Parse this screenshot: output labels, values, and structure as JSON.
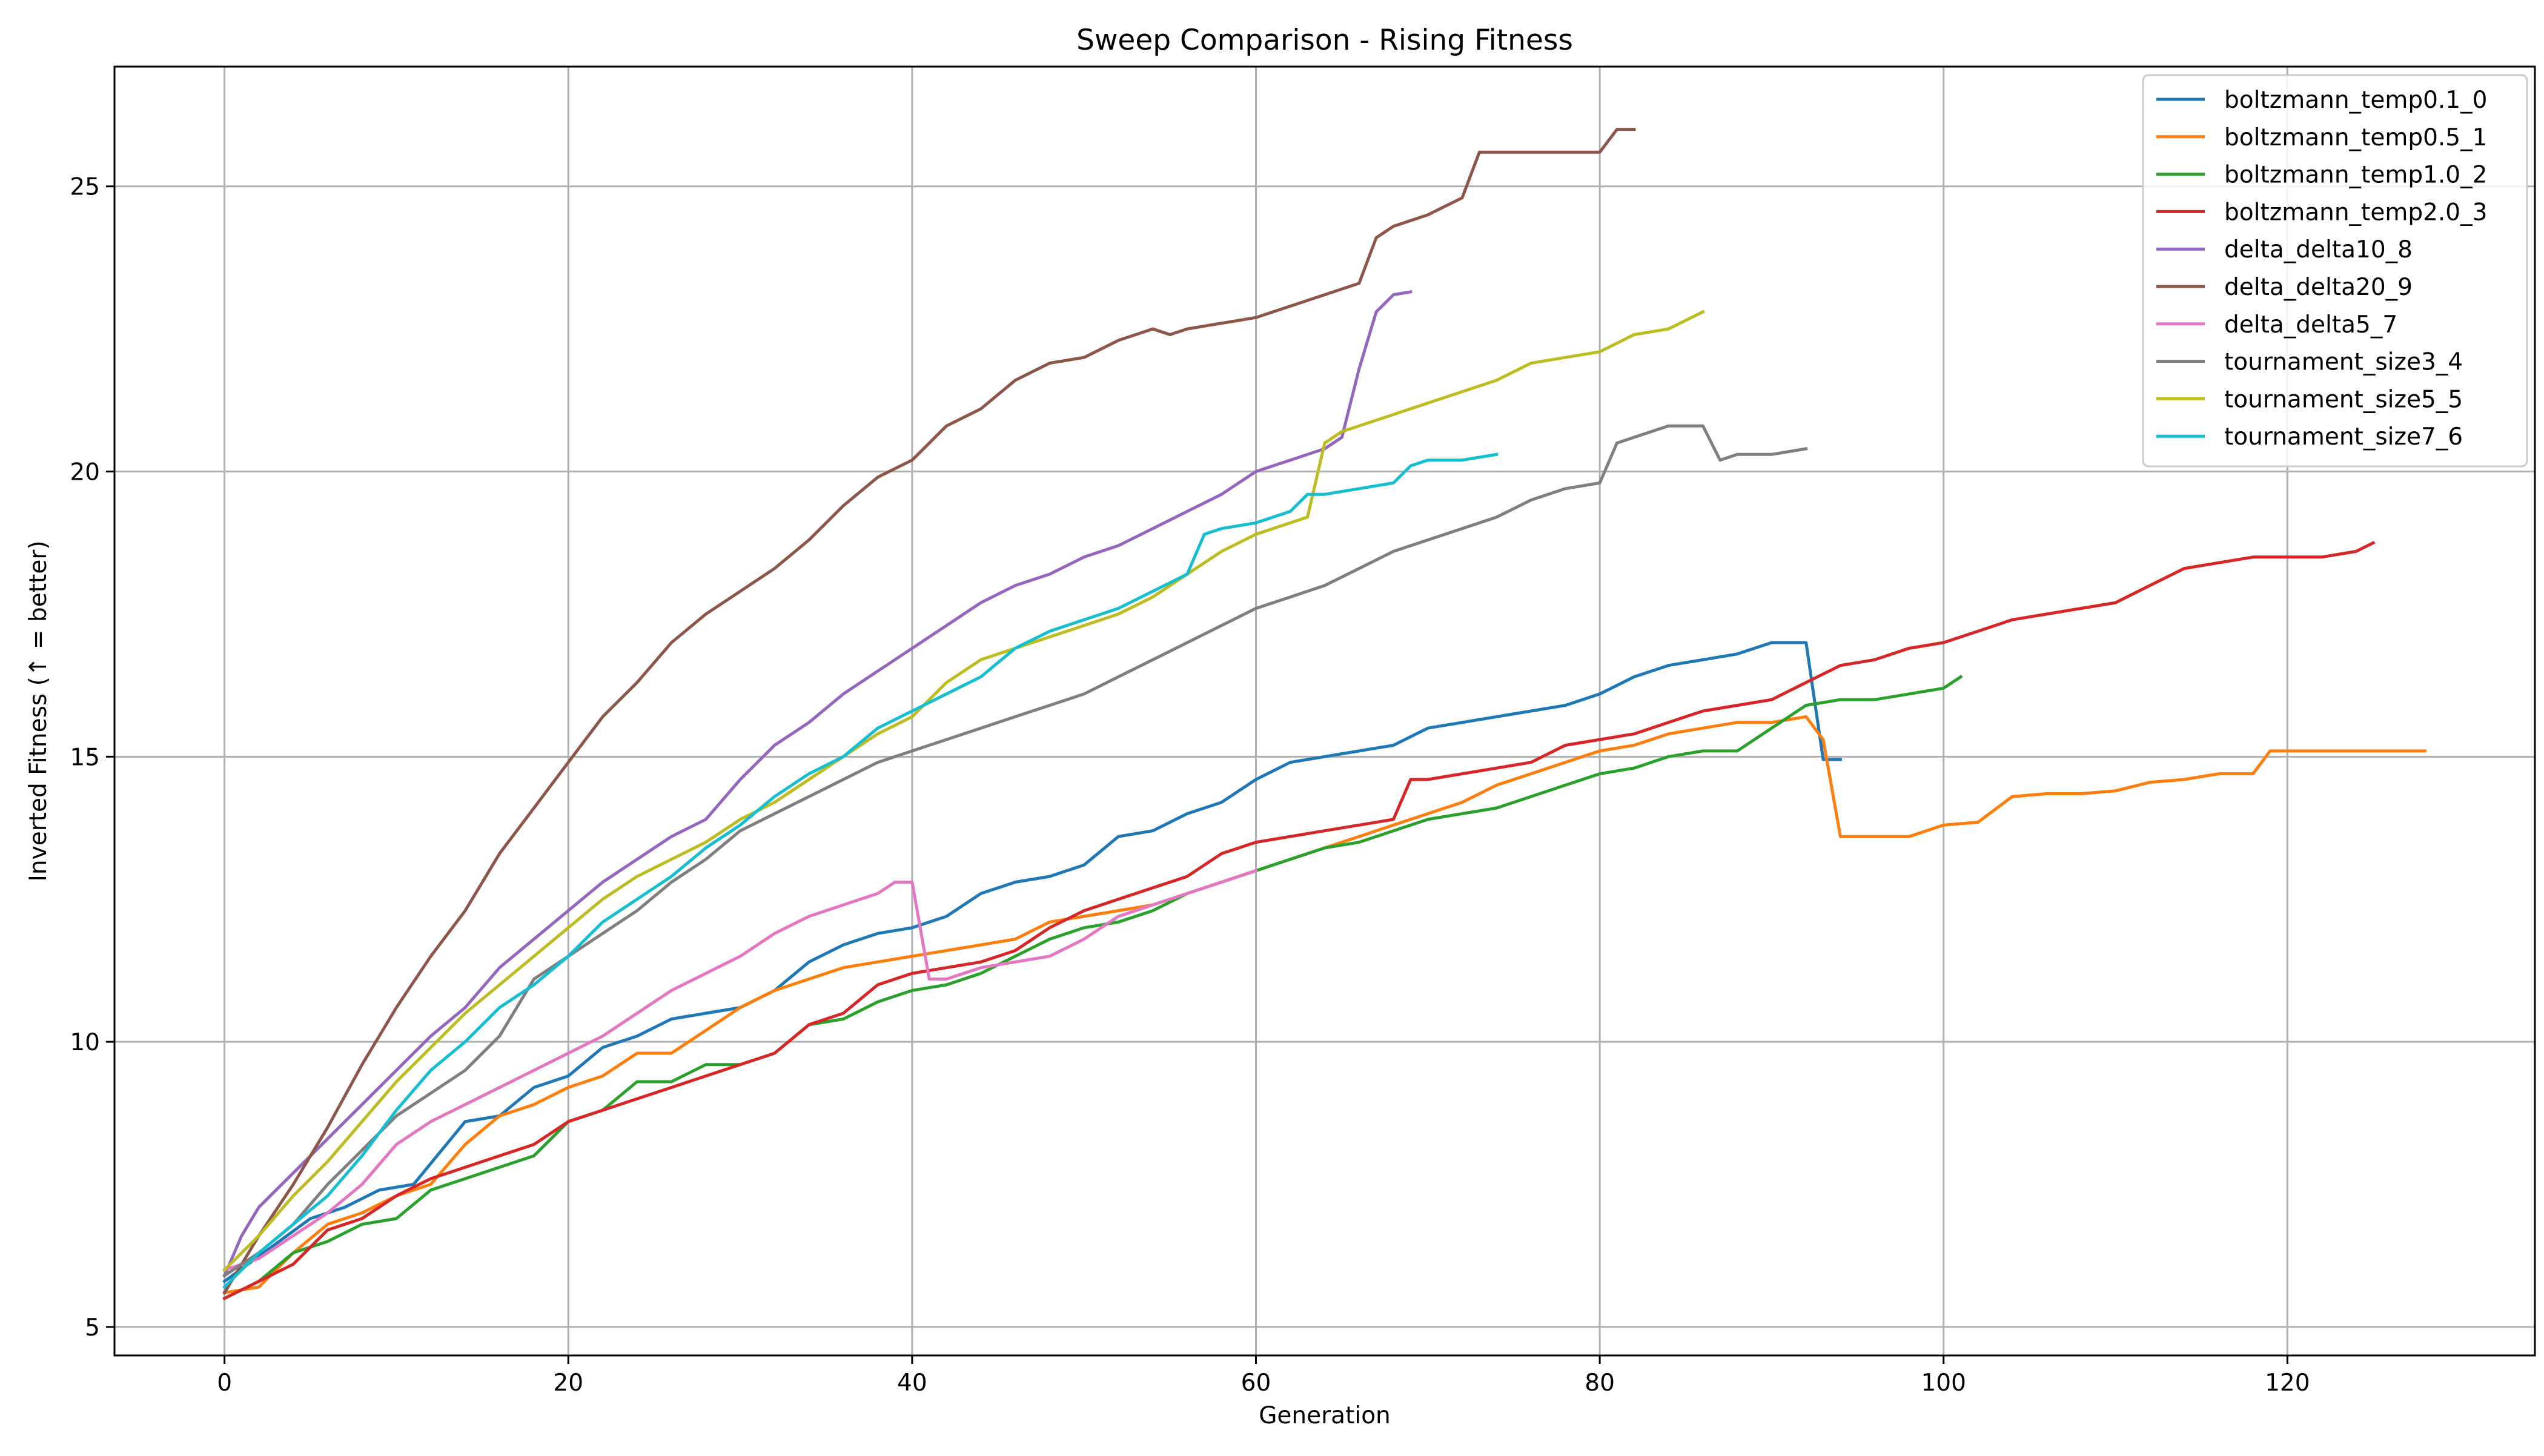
{
  "chart_data": {
    "type": "line",
    "title": "Sweep Comparison - Rising Fitness",
    "xlabel": "Generation",
    "ylabel": "Inverted Fitness (↑ = better)",
    "xlim": [
      -6.4,
      134.4
    ],
    "ylim": [
      4.5,
      27.1
    ],
    "xticks": [
      0,
      20,
      40,
      60,
      80,
      100,
      120
    ],
    "yticks": [
      5,
      10,
      15,
      20,
      25
    ],
    "grid": true,
    "legend": "top-right",
    "series": [
      {
        "name": "boltzmann_temp0.1_0",
        "color": "#1f77b4",
        "x": [
          0,
          5,
          7,
          9,
          11,
          14,
          16,
          18,
          20,
          22,
          24,
          26,
          28,
          30,
          32,
          34,
          36,
          38,
          40,
          42,
          44,
          46,
          48,
          50,
          52,
          54,
          56,
          58,
          60,
          62,
          64,
          66,
          68,
          70,
          72,
          74,
          76,
          78,
          80,
          82,
          84,
          86,
          88,
          90,
          91,
          92,
          93,
          94
        ],
        "y": [
          5.8,
          6.9,
          7.1,
          7.4,
          7.5,
          8.6,
          8.7,
          9.2,
          9.4,
          9.9,
          10.1,
          10.4,
          10.5,
          10.6,
          10.9,
          11.4,
          11.7,
          11.9,
          12.0,
          12.2,
          12.6,
          12.8,
          12.9,
          13.1,
          13.6,
          13.7,
          14.0,
          14.2,
          14.6,
          14.9,
          15.0,
          15.1,
          15.2,
          15.5,
          15.6,
          15.7,
          15.8,
          15.9,
          16.1,
          16.4,
          16.6,
          16.7,
          16.8,
          17.0,
          17.0,
          17.0,
          14.95,
          14.95
        ]
      },
      {
        "name": "boltzmann_temp0.5_1",
        "color": "#ff7f0e",
        "x": [
          0,
          2,
          4,
          6,
          8,
          10,
          12,
          14,
          16,
          18,
          20,
          22,
          24,
          26,
          28,
          30,
          32,
          34,
          36,
          38,
          40,
          42,
          44,
          46,
          48,
          50,
          52,
          54,
          56,
          58,
          60,
          62,
          64,
          66,
          68,
          70,
          72,
          74,
          76,
          78,
          80,
          82,
          84,
          86,
          88,
          90,
          92,
          93,
          94,
          96,
          98,
          100,
          102,
          104,
          106,
          108,
          110,
          112,
          114,
          116,
          118,
          119,
          120,
          122,
          124,
          126,
          128
        ],
        "y": [
          5.6,
          5.7,
          6.3,
          6.8,
          7.0,
          7.3,
          7.5,
          8.2,
          8.7,
          8.9,
          9.2,
          9.4,
          9.8,
          9.8,
          10.2,
          10.6,
          10.9,
          11.1,
          11.3,
          11.4,
          11.5,
          11.6,
          11.7,
          11.8,
          12.1,
          12.2,
          12.3,
          12.4,
          12.6,
          12.8,
          13.0,
          13.2,
          13.4,
          13.6,
          13.8,
          14.0,
          14.2,
          14.5,
          14.7,
          14.9,
          15.1,
          15.2,
          15.4,
          15.5,
          15.6,
          15.6,
          15.7,
          15.3,
          13.6,
          13.6,
          13.6,
          13.8,
          13.85,
          14.3,
          14.35,
          14.35,
          14.4,
          14.55,
          14.6,
          14.7,
          14.7,
          15.1,
          15.1,
          15.1,
          15.1,
          15.1,
          15.1
        ]
      },
      {
        "name": "boltzmann_temp1.0_2",
        "color": "#2ca02c",
        "x": [
          0,
          2,
          4,
          6,
          8,
          10,
          12,
          14,
          16,
          18,
          20,
          22,
          24,
          26,
          28,
          30,
          32,
          34,
          36,
          38,
          40,
          42,
          44,
          46,
          48,
          50,
          52,
          54,
          56,
          58,
          60,
          62,
          64,
          66,
          68,
          70,
          72,
          74,
          76,
          78,
          80,
          82,
          84,
          86,
          88,
          90,
          92,
          94,
          96,
          98,
          100,
          101
        ],
        "y": [
          5.5,
          5.8,
          6.3,
          6.5,
          6.8,
          6.9,
          7.4,
          7.6,
          7.8,
          8.0,
          8.6,
          8.8,
          9.3,
          9.3,
          9.6,
          9.6,
          9.8,
          10.3,
          10.4,
          10.7,
          10.9,
          11.0,
          11.2,
          11.5,
          11.8,
          12.0,
          12.1,
          12.3,
          12.6,
          12.8,
          13.0,
          13.2,
          13.4,
          13.5,
          13.7,
          13.9,
          14.0,
          14.1,
          14.3,
          14.5,
          14.7,
          14.8,
          15.0,
          15.1,
          15.1,
          15.5,
          15.9,
          16.0,
          16.0,
          16.1,
          16.2,
          16.4
        ]
      },
      {
        "name": "boltzmann_temp2.0_3",
        "color": "#d62728",
        "x": [
          0,
          2,
          4,
          6,
          8,
          10,
          12,
          14,
          16,
          18,
          20,
          22,
          24,
          26,
          28,
          30,
          32,
          34,
          36,
          38,
          40,
          42,
          44,
          46,
          48,
          50,
          52,
          54,
          56,
          58,
          60,
          62,
          64,
          66,
          68,
          69,
          70,
          72,
          74,
          76,
          78,
          80,
          82,
          84,
          86,
          88,
          90,
          92,
          94,
          96,
          98,
          100,
          102,
          104,
          106,
          108,
          110,
          112,
          114,
          116,
          118,
          120,
          122,
          124,
          125
        ],
        "y": [
          5.5,
          5.8,
          6.1,
          6.7,
          6.9,
          7.3,
          7.6,
          7.8,
          8.0,
          8.2,
          8.6,
          8.8,
          9.0,
          9.2,
          9.4,
          9.6,
          9.8,
          10.3,
          10.5,
          11.0,
          11.2,
          11.3,
          11.4,
          11.6,
          12.0,
          12.3,
          12.5,
          12.7,
          12.9,
          13.3,
          13.5,
          13.6,
          13.7,
          13.8,
          13.9,
          14.6,
          14.6,
          14.7,
          14.8,
          14.9,
          15.2,
          15.3,
          15.4,
          15.6,
          15.8,
          15.9,
          16.0,
          16.3,
          16.6,
          16.7,
          16.9,
          17.0,
          17.2,
          17.4,
          17.5,
          17.6,
          17.7,
          18.0,
          18.3,
          18.4,
          18.5,
          18.5,
          18.5,
          18.6,
          18.75
        ]
      },
      {
        "name": "delta_delta10_8",
        "color": "#9467bd",
        "x": [
          0,
          1,
          2,
          4,
          6,
          8,
          10,
          12,
          14,
          16,
          18,
          20,
          22,
          24,
          26,
          28,
          30,
          32,
          34,
          36,
          38,
          40,
          42,
          44,
          46,
          48,
          50,
          52,
          54,
          56,
          58,
          60,
          62,
          64,
          65,
          66,
          67,
          68,
          69
        ],
        "y": [
          5.9,
          6.6,
          7.1,
          7.7,
          8.3,
          8.9,
          9.5,
          10.1,
          10.6,
          11.3,
          11.8,
          12.3,
          12.8,
          13.2,
          13.6,
          13.9,
          14.6,
          15.2,
          15.6,
          16.1,
          16.5,
          16.9,
          17.3,
          17.7,
          18.0,
          18.2,
          18.5,
          18.7,
          19.0,
          19.3,
          19.6,
          20.0,
          20.2,
          20.4,
          20.6,
          21.8,
          22.8,
          23.1,
          23.15
        ]
      },
      {
        "name": "delta_delta20_9",
        "color": "#8c564b",
        "x": [
          0,
          2,
          4,
          6,
          8,
          10,
          12,
          14,
          16,
          18,
          20,
          22,
          24,
          26,
          28,
          30,
          32,
          34,
          36,
          38,
          40,
          42,
          44,
          46,
          48,
          50,
          52,
          54,
          55,
          56,
          58,
          60,
          62,
          64,
          66,
          67,
          68,
          70,
          72,
          73,
          76,
          78,
          80,
          81,
          82
        ],
        "y": [
          5.6,
          6.6,
          7.5,
          8.5,
          9.6,
          10.6,
          11.5,
          12.3,
          13.3,
          14.1,
          14.9,
          15.7,
          16.3,
          17.0,
          17.5,
          17.9,
          18.3,
          18.8,
          19.4,
          19.9,
          20.2,
          20.8,
          21.1,
          21.6,
          21.9,
          22.0,
          22.3,
          22.5,
          22.4,
          22.5,
          22.6,
          22.7,
          22.9,
          23.1,
          23.3,
          24.1,
          24.3,
          24.5,
          24.8,
          25.6,
          25.6,
          25.6,
          25.6,
          26.0,
          26.0
        ]
      },
      {
        "name": "delta_delta5_7",
        "color": "#e377c2",
        "x": [
          0,
          2,
          4,
          6,
          8,
          10,
          12,
          14,
          16,
          18,
          20,
          22,
          24,
          26,
          28,
          30,
          32,
          34,
          36,
          38,
          39,
          40,
          41,
          42,
          44,
          46,
          48,
          50,
          52,
          54,
          56,
          58,
          60
        ],
        "y": [
          6.0,
          6.2,
          6.6,
          7.0,
          7.5,
          8.2,
          8.6,
          8.9,
          9.2,
          9.5,
          9.8,
          10.1,
          10.5,
          10.9,
          11.2,
          11.5,
          11.9,
          12.2,
          12.4,
          12.6,
          12.8,
          12.8,
          11.1,
          11.1,
          11.3,
          11.4,
          11.5,
          11.8,
          12.2,
          12.4,
          12.6,
          12.8,
          13.0
        ]
      },
      {
        "name": "tournament_size3_4",
        "color": "#7f7f7f",
        "x": [
          0,
          2,
          4,
          6,
          8,
          10,
          12,
          14,
          16,
          18,
          20,
          22,
          24,
          26,
          28,
          30,
          32,
          34,
          36,
          38,
          40,
          42,
          44,
          46,
          48,
          50,
          52,
          54,
          56,
          58,
          60,
          62,
          64,
          66,
          68,
          70,
          72,
          74,
          76,
          78,
          80,
          81,
          82,
          84,
          86,
          87,
          88,
          90,
          92
        ],
        "y": [
          5.9,
          6.3,
          6.8,
          7.5,
          8.1,
          8.7,
          9.1,
          9.5,
          10.1,
          11.1,
          11.5,
          11.9,
          12.3,
          12.8,
          13.2,
          13.7,
          14.0,
          14.3,
          14.6,
          14.9,
          15.1,
          15.3,
          15.5,
          15.7,
          15.9,
          16.1,
          16.4,
          16.7,
          17.0,
          17.3,
          17.6,
          17.8,
          18.0,
          18.3,
          18.6,
          18.8,
          19.0,
          19.2,
          19.5,
          19.7,
          19.8,
          20.5,
          20.6,
          20.8,
          20.8,
          20.2,
          20.3,
          20.3,
          20.4
        ]
      },
      {
        "name": "tournament_size5_5",
        "color": "#bcbd22",
        "x": [
          0,
          2,
          4,
          6,
          8,
          10,
          12,
          14,
          16,
          18,
          20,
          22,
          24,
          26,
          28,
          30,
          32,
          34,
          36,
          38,
          40,
          42,
          44,
          46,
          48,
          50,
          52,
          54,
          56,
          58,
          60,
          62,
          63,
          64,
          65,
          66,
          68,
          70,
          72,
          74,
          76,
          78,
          80,
          82,
          84,
          86
        ],
        "y": [
          6.0,
          6.6,
          7.3,
          7.9,
          8.6,
          9.3,
          9.9,
          10.5,
          11.0,
          11.5,
          12.0,
          12.5,
          12.9,
          13.2,
          13.5,
          13.9,
          14.2,
          14.6,
          15.0,
          15.4,
          15.7,
          16.3,
          16.7,
          16.9,
          17.1,
          17.3,
          17.5,
          17.8,
          18.2,
          18.6,
          18.9,
          19.1,
          19.2,
          20.5,
          20.7,
          20.8,
          21.0,
          21.2,
          21.4,
          21.6,
          21.9,
          22.0,
          22.1,
          22.4,
          22.5,
          22.8
        ]
      },
      {
        "name": "tournament_size7_6",
        "color": "#17becf",
        "x": [
          0,
          2,
          4,
          6,
          8,
          10,
          12,
          14,
          16,
          18,
          20,
          22,
          24,
          26,
          28,
          30,
          32,
          34,
          36,
          38,
          40,
          42,
          44,
          46,
          48,
          50,
          52,
          54,
          56,
          57,
          58,
          60,
          62,
          63,
          64,
          66,
          68,
          69,
          70,
          72,
          74
        ],
        "y": [
          5.7,
          6.3,
          6.8,
          7.3,
          8.0,
          8.8,
          9.5,
          10.0,
          10.6,
          11.0,
          11.5,
          12.1,
          12.5,
          12.9,
          13.4,
          13.8,
          14.3,
          14.7,
          15.0,
          15.5,
          15.8,
          16.1,
          16.4,
          16.9,
          17.2,
          17.4,
          17.6,
          17.9,
          18.2,
          18.9,
          19.0,
          19.1,
          19.3,
          19.6,
          19.6,
          19.7,
          19.8,
          20.1,
          20.2,
          20.2,
          20.3
        ]
      }
    ]
  }
}
